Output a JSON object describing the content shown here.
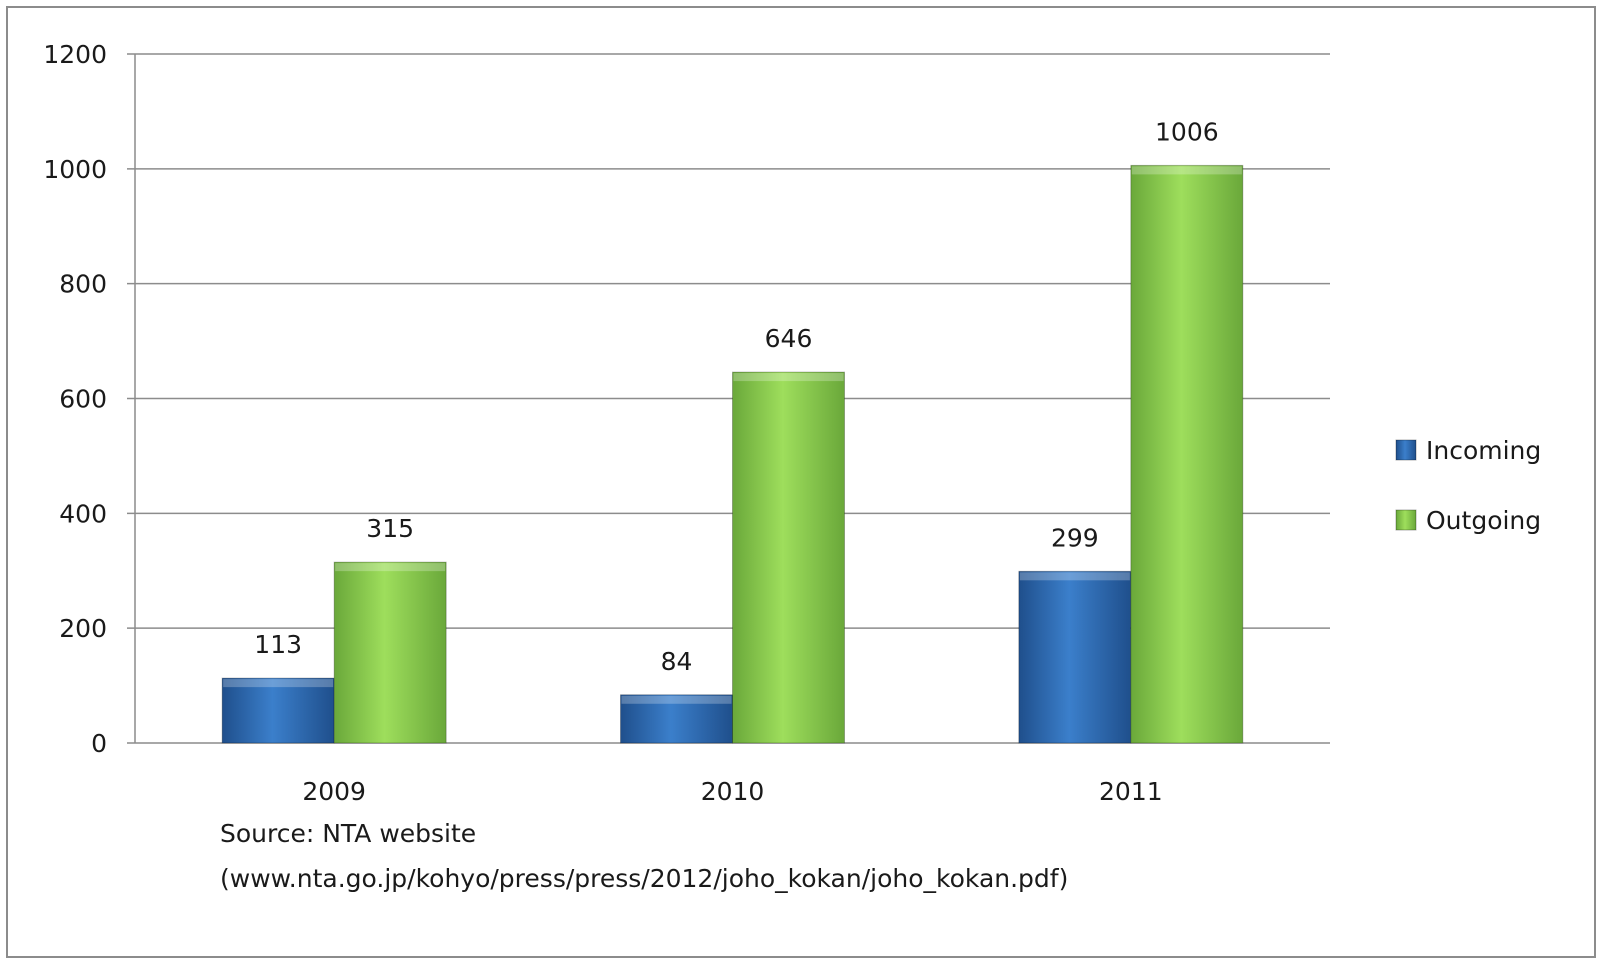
{
  "chart_data": {
    "type": "bar",
    "title": "",
    "xlabel": "",
    "ylabel": "",
    "categories": [
      "2009",
      "2010",
      "2011"
    ],
    "series": [
      {
        "name": "Incoming",
        "values": [
          113,
          84,
          299
        ],
        "color": "#2E6DB4"
      },
      {
        "name": "Outgoing",
        "values": [
          315,
          646,
          1006
        ],
        "color": "#8FD14F"
      }
    ],
    "ylim": [
      0,
      1200
    ],
    "yticks": [
      0,
      200,
      400,
      600,
      800,
      1000,
      1200
    ],
    "grid": true,
    "legend_position": "right"
  },
  "source": {
    "line1": "Source: NTA website",
    "line2": "(www.nta.go.jp/kohyo/press/press/2012/joho_kokan/joho_kokan.pdf)"
  },
  "colors": {
    "frame_border": "#8c8c8c",
    "grid": "#8c8c8c",
    "axis": "#8c8c8c"
  }
}
